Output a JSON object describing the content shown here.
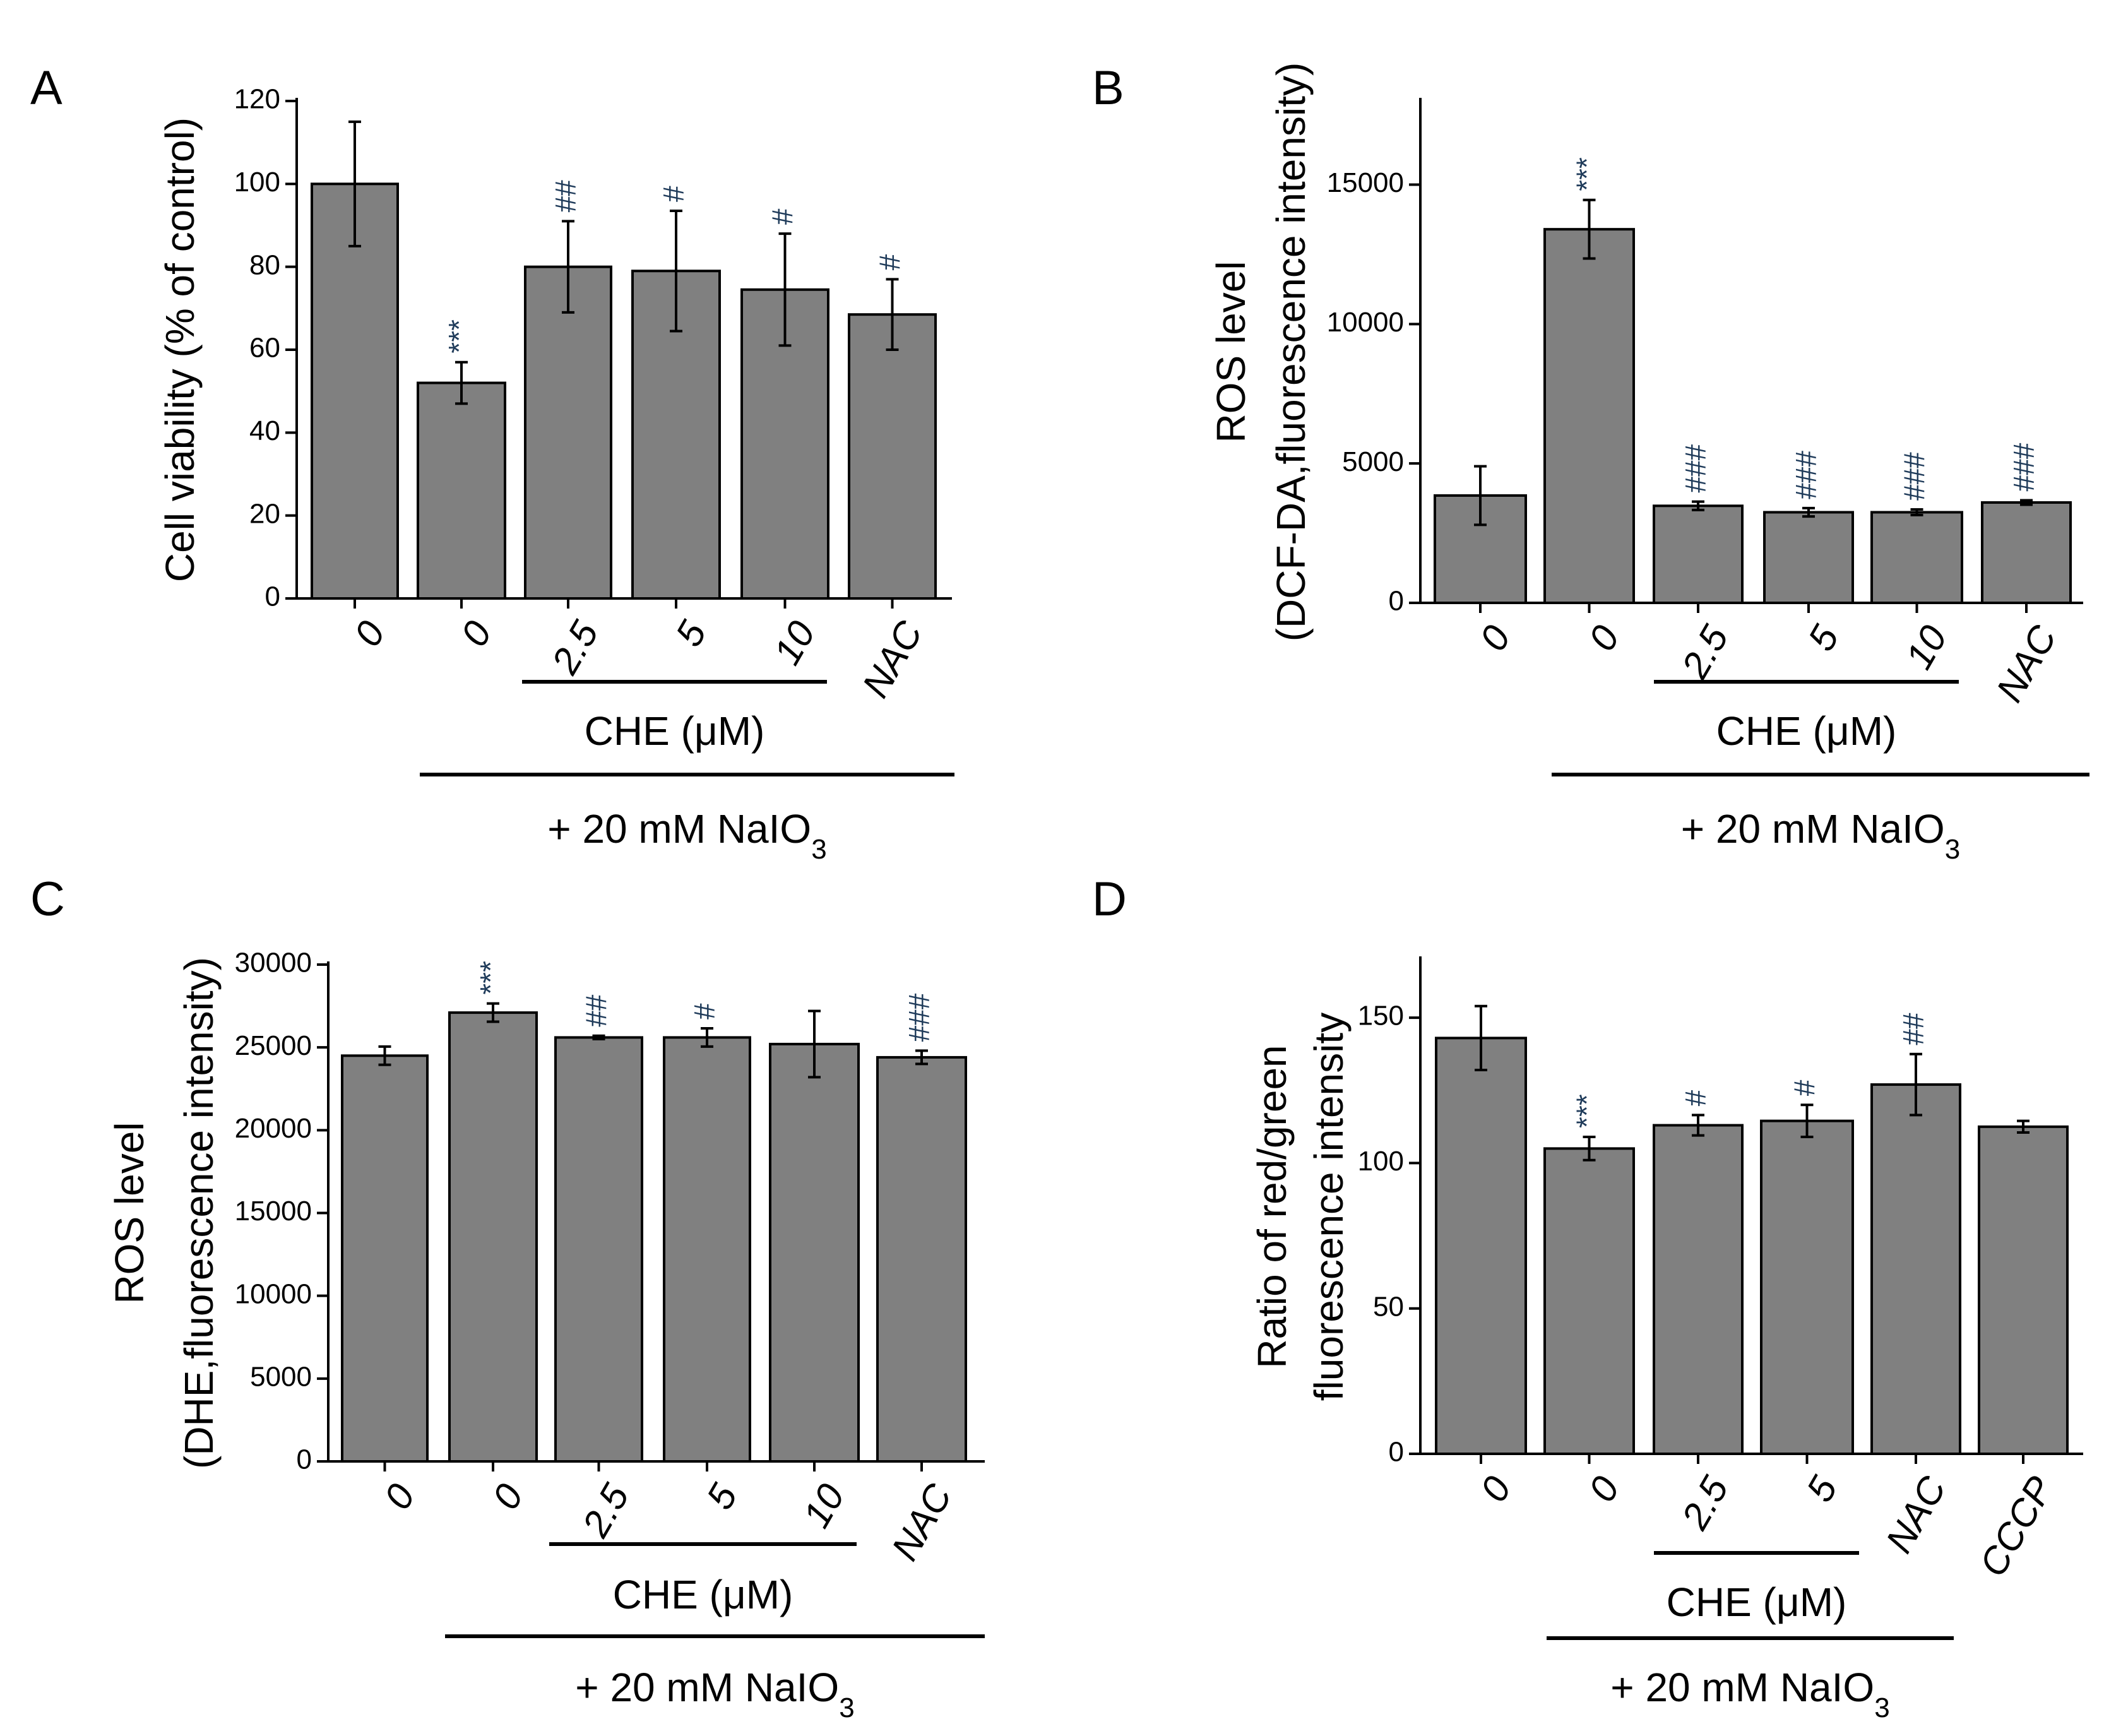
{
  "chart_data": [
    {
      "id": "A",
      "type": "bar",
      "panel_label": "A",
      "ylabel": [
        "Cell viability (% of control)"
      ],
      "ylim": [
        0,
        120
      ],
      "yticks": [
        "0",
        "20",
        "40",
        "60",
        "80",
        "100",
        "120"
      ],
      "categories": [
        "0",
        "0",
        "2.5",
        "5",
        "10",
        "NAC"
      ],
      "values": [
        100,
        52,
        80,
        79,
        74.5,
        68.5
      ],
      "errors": [
        15,
        5,
        11,
        14.5,
        13.5,
        8.5
      ],
      "significance": [
        "",
        "***",
        "##",
        "#",
        "#",
        "#"
      ],
      "bracket_inner": "CHE (μM)",
      "bracket_outer": "+ 20 mM NaIO",
      "bracket_outer_sub": "3"
    },
    {
      "id": "B",
      "type": "bar",
      "panel_label": "B",
      "ylabel": [
        "ROS level",
        "(DCF-DA,fluorescence intensity)"
      ],
      "ylim": [
        0,
        18000
      ],
      "yticks": [
        "0",
        "5000",
        "10000",
        "15000"
      ],
      "categories": [
        "0",
        "0",
        "2.5",
        "5",
        "10",
        "NAC"
      ],
      "values": [
        3850,
        13400,
        3480,
        3250,
        3250,
        3600
      ],
      "errors": [
        1050,
        1050,
        150,
        150,
        100,
        80
      ],
      "significance": [
        "",
        "***",
        "###",
        "###",
        "###",
        "###"
      ],
      "bracket_inner": "CHE (μM)",
      "bracket_outer": "+ 20 mM NaIO",
      "bracket_outer_sub": "3"
    },
    {
      "id": "C",
      "type": "bar",
      "panel_label": "C",
      "ylabel": [
        "ROS level",
        "(DHE,fluorescence intensity)"
      ],
      "ylim": [
        0,
        30000
      ],
      "yticks": [
        "0",
        "5000",
        "10000",
        "15000",
        "20000",
        "25000",
        "30000"
      ],
      "categories": [
        "0",
        "0",
        "2.5",
        "5",
        "10",
        "NAC"
      ],
      "values": [
        24500,
        27100,
        25600,
        25600,
        25200,
        24400
      ],
      "errors": [
        550,
        550,
        100,
        550,
        2000,
        400
      ],
      "significance": [
        "",
        "***",
        "##",
        "#",
        "",
        "###"
      ],
      "bracket_inner": "CHE (μM)",
      "bracket_outer": "+ 20 mM NaIO",
      "bracket_outer_sub": "3"
    },
    {
      "id": "D",
      "type": "bar",
      "panel_label": "D",
      "ylabel": [
        "Ratio of  red/green",
        "fluorescence intensity"
      ],
      "ylim": [
        0,
        170
      ],
      "yticks": [
        "0",
        "50",
        "100",
        "150"
      ],
      "categories": [
        "0",
        "0",
        "2.5",
        "5",
        "NAC",
        "CCCP"
      ],
      "values": [
        143,
        105,
        113,
        114.5,
        127,
        112.5
      ],
      "errors": [
        11,
        4,
        3.5,
        5.5,
        10.5,
        2
      ],
      "significance": [
        "",
        "***",
        "#",
        "#",
        "##",
        ""
      ],
      "bracket_inner": "CHE (μM)",
      "bracket_outer": "+ 20 mM NaIO",
      "bracket_outer_sub": "3"
    }
  ]
}
